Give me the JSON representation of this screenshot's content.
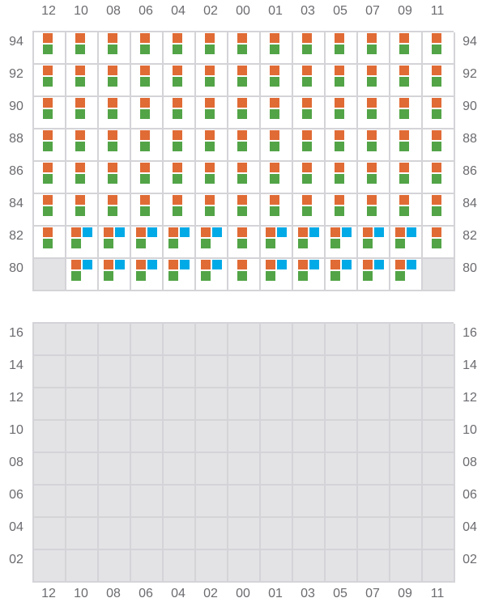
{
  "colors": {
    "orange": "#e06b35",
    "green": "#52a447",
    "blue": "#00aae6",
    "empty": "#e3e3e6",
    "border": "#d4d4d8"
  },
  "columns": [
    "12",
    "10",
    "08",
    "06",
    "04",
    "02",
    "00",
    "01",
    "03",
    "05",
    "07",
    "09",
    "11"
  ],
  "top_grid": {
    "rows": [
      {
        "label": "94",
        "cells": [
          "og",
          "og",
          "og",
          "og",
          "og",
          "og",
          "og",
          "og",
          "og",
          "og",
          "og",
          "og",
          "og"
        ]
      },
      {
        "label": "92",
        "cells": [
          "og",
          "og",
          "og",
          "og",
          "og",
          "og",
          "og",
          "og",
          "og",
          "og",
          "og",
          "og",
          "og"
        ]
      },
      {
        "label": "90",
        "cells": [
          "og",
          "og",
          "og",
          "og",
          "og",
          "og",
          "og",
          "og",
          "og",
          "og",
          "og",
          "og",
          "og"
        ]
      },
      {
        "label": "88",
        "cells": [
          "og",
          "og",
          "og",
          "og",
          "og",
          "og",
          "og",
          "og",
          "og",
          "og",
          "og",
          "og",
          "og"
        ]
      },
      {
        "label": "86",
        "cells": [
          "og",
          "og",
          "og",
          "og",
          "og",
          "og",
          "og",
          "og",
          "og",
          "og",
          "og",
          "og",
          "og"
        ]
      },
      {
        "label": "84",
        "cells": [
          "og",
          "og",
          "og",
          "og",
          "og",
          "og",
          "og",
          "og",
          "og",
          "og",
          "og",
          "og",
          "og"
        ]
      },
      {
        "label": "82",
        "cells": [
          "og",
          "ogb",
          "ogb",
          "ogb",
          "ogb",
          "ogb",
          "og",
          "ogb",
          "ogb",
          "ogb",
          "ogb",
          "ogb",
          "og"
        ]
      },
      {
        "label": "80",
        "cells": [
          "",
          "ogb",
          "ogb",
          "ogb",
          "ogb",
          "ogb",
          "og",
          "ogb",
          "ogb",
          "ogb",
          "ogb",
          "ogb",
          ""
        ]
      }
    ]
  },
  "bottom_grid": {
    "rows": [
      {
        "label": "16",
        "cells": [
          "",
          "",
          "",
          "",
          "",
          "",
          "",
          "",
          "",
          "",
          "",
          "",
          ""
        ]
      },
      {
        "label": "14",
        "cells": [
          "",
          "",
          "",
          "",
          "",
          "",
          "",
          "",
          "",
          "",
          "",
          "",
          ""
        ]
      },
      {
        "label": "12",
        "cells": [
          "",
          "",
          "",
          "",
          "",
          "",
          "",
          "",
          "",
          "",
          "",
          "",
          ""
        ]
      },
      {
        "label": "10",
        "cells": [
          "",
          "",
          "",
          "",
          "",
          "",
          "",
          "",
          "",
          "",
          "",
          "",
          ""
        ]
      },
      {
        "label": "08",
        "cells": [
          "",
          "",
          "",
          "",
          "",
          "",
          "",
          "",
          "",
          "",
          "",
          "",
          ""
        ]
      },
      {
        "label": "06",
        "cells": [
          "",
          "",
          "",
          "",
          "",
          "",
          "",
          "",
          "",
          "",
          "",
          "",
          ""
        ]
      },
      {
        "label": "04",
        "cells": [
          "",
          "",
          "",
          "",
          "",
          "",
          "",
          "",
          "",
          "",
          "",
          "",
          ""
        ]
      },
      {
        "label": "02",
        "cells": [
          "",
          "",
          "",
          "",
          "",
          "",
          "",
          "",
          "",
          "",
          "",
          "",
          ""
        ]
      }
    ]
  }
}
